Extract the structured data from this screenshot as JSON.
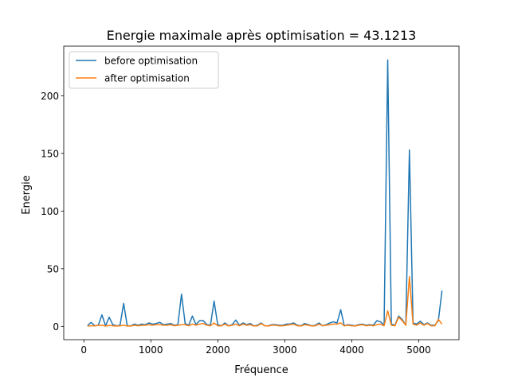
{
  "chart_data": {
    "type": "line",
    "title": "Energie maximale après optimisation = 43.1213",
    "xlabel": "Fréquence",
    "ylabel": "Energie",
    "xlim": [
      -300,
      5600
    ],
    "ylim": [
      -11.5,
      243
    ],
    "xticks": [
      0,
      1000,
      2000,
      3000,
      4000,
      5000
    ],
    "yticks": [
      0,
      50,
      100,
      150,
      200
    ],
    "grid": false,
    "legend_position": "top-left",
    "x": [
      54,
      108,
      162,
      216,
      270,
      324,
      378,
      432,
      486,
      540,
      594,
      648,
      702,
      756,
      810,
      864,
      918,
      972,
      1026,
      1080,
      1134,
      1188,
      1242,
      1296,
      1350,
      1404,
      1458,
      1512,
      1566,
      1620,
      1674,
      1728,
      1782,
      1836,
      1890,
      1944,
      1998,
      2052,
      2106,
      2160,
      2214,
      2268,
      2322,
      2376,
      2430,
      2484,
      2538,
      2592,
      2646,
      2700,
      2754,
      2808,
      2862,
      2916,
      2970,
      3024,
      3078,
      3132,
      3186,
      3240,
      3294,
      3348,
      3402,
      3456,
      3510,
      3564,
      3618,
      3672,
      3726,
      3780,
      3834,
      3888,
      3942,
      3996,
      4050,
      4104,
      4158,
      4212,
      4266,
      4320,
      4374,
      4428,
      4482,
      4536,
      4590,
      4644,
      4698,
      4752,
      4806,
      4860,
      4914,
      4968,
      5022,
      5076,
      5130,
      5184,
      5238,
      5292,
      5346
    ],
    "series": [
      {
        "name": "before optimisation",
        "color": "#1f77b4",
        "values": [
          0.5,
          3.5,
          0.5,
          1.0,
          10.0,
          0.5,
          8.0,
          1.5,
          0.5,
          1.0,
          20.0,
          0.5,
          0.5,
          2.0,
          1.0,
          2.0,
          1.5,
          3.0,
          2.0,
          2.5,
          3.5,
          1.5,
          2.0,
          2.5,
          1.0,
          1.5,
          28.0,
          2.5,
          1.0,
          9.0,
          1.5,
          5.0,
          5.0,
          1.5,
          1.0,
          22.0,
          1.5,
          0.5,
          3.0,
          0.5,
          1.5,
          5.5,
          1.0,
          3.0,
          1.5,
          2.5,
          0.5,
          1.0,
          3.0,
          0.5,
          0.5,
          1.5,
          1.5,
          1.0,
          1.0,
          2.0,
          2.0,
          3.0,
          1.0,
          0.5,
          2.5,
          1.5,
          0.5,
          1.0,
          3.0,
          0.5,
          1.5,
          3.0,
          4.0,
          3.0,
          14.5,
          0.5,
          1.5,
          1.0,
          0.5,
          1.5,
          2.0,
          1.0,
          1.5,
          1.0,
          5.0,
          4.0,
          1.0,
          231.0,
          2.0,
          1.0,
          9.0,
          6.0,
          1.0,
          153.0,
          3.0,
          2.0,
          4.5,
          1.5,
          3.0,
          1.0,
          1.0,
          5.0,
          31.0
        ]
      },
      {
        "name": "after optimisation",
        "color": "#ff7f0e",
        "values": [
          0.3,
          0.5,
          0.5,
          0.8,
          1.0,
          0.3,
          0.8,
          0.5,
          0.3,
          0.5,
          1.0,
          0.3,
          0.3,
          1.0,
          0.5,
          1.0,
          1.0,
          1.5,
          1.0,
          1.5,
          1.5,
          1.0,
          1.0,
          1.5,
          0.5,
          1.0,
          1.5,
          1.5,
          0.5,
          2.0,
          1.0,
          2.0,
          2.5,
          1.0,
          0.5,
          3.0,
          0.5,
          0.5,
          2.0,
          0.3,
          1.0,
          2.0,
          0.5,
          2.0,
          1.0,
          1.5,
          0.3,
          0.5,
          2.5,
          0.5,
          0.3,
          1.0,
          1.0,
          0.5,
          0.5,
          1.0,
          1.5,
          2.0,
          0.5,
          0.3,
          1.5,
          1.0,
          0.3,
          0.5,
          2.0,
          0.5,
          1.0,
          1.5,
          2.0,
          2.0,
          3.0,
          0.5,
          1.0,
          0.5,
          0.3,
          1.0,
          1.5,
          0.5,
          1.0,
          0.5,
          1.5,
          2.0,
          0.5,
          13.5,
          1.0,
          0.5,
          8.0,
          5.0,
          1.0,
          43.1213,
          2.0,
          1.0,
          3.0,
          1.0,
          2.5,
          0.5,
          0.5,
          6.0,
          2.0
        ]
      }
    ]
  }
}
